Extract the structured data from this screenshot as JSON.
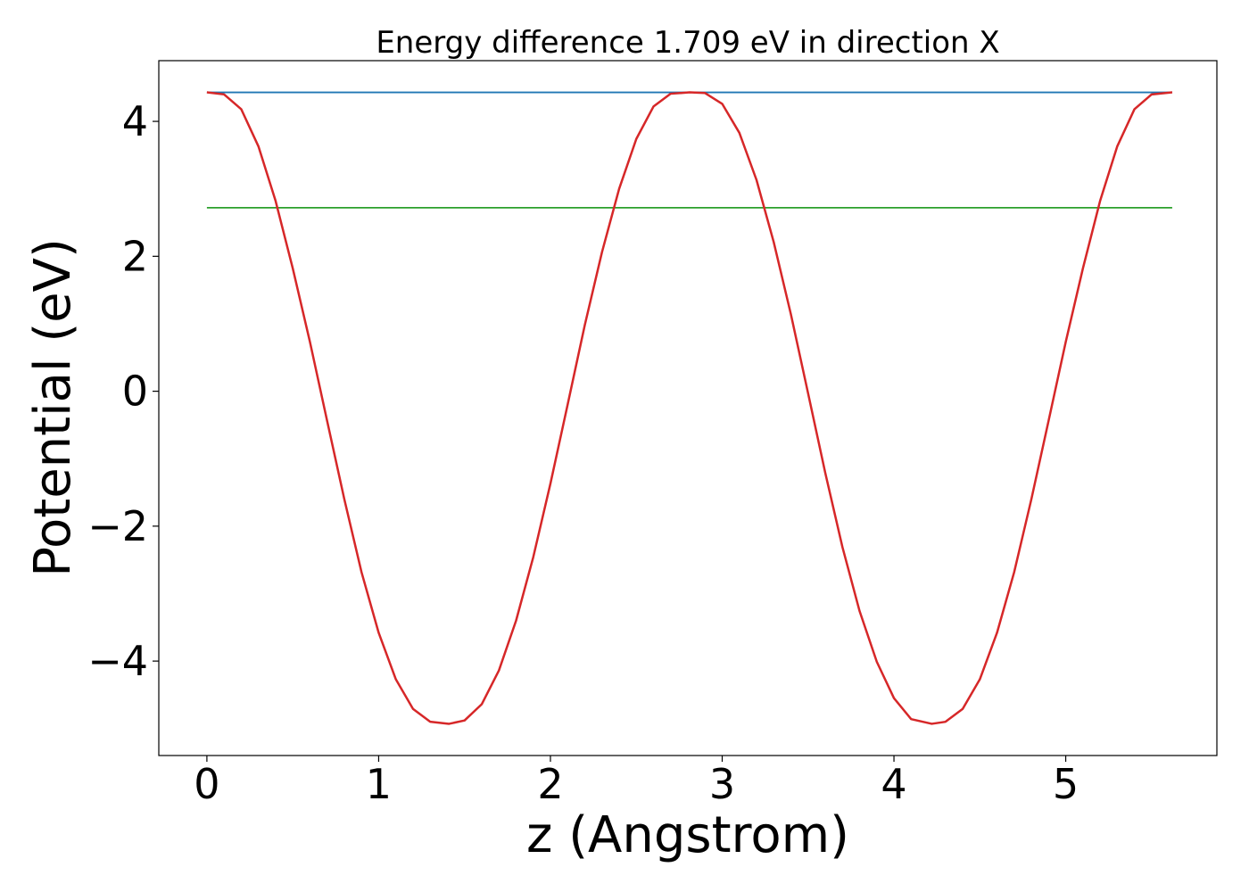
{
  "chart_data": {
    "type": "line",
    "title": "Energy difference 1.709 eV in direction X",
    "xlabel": "z (Angstrom)",
    "ylabel": "Potential (eV)",
    "xlim": [
      -0.28,
      5.88
    ],
    "ylim": [
      -5.4,
      4.9
    ],
    "xticks": [
      0,
      1,
      2,
      3,
      4,
      5
    ],
    "xtick_labels": [
      "0",
      "1",
      "2",
      "3",
      "4",
      "5"
    ],
    "yticks": [
      -4,
      -2,
      0,
      2,
      4
    ],
    "ytick_labels": [
      "−4",
      "−2",
      "0",
      "2",
      "4"
    ],
    "grid": false,
    "series": [
      {
        "color": "#1f77b4",
        "x": [
          0,
          5.62
        ],
        "y": [
          4.43,
          4.43
        ]
      },
      {
        "color": "#2ca02c",
        "x": [
          0,
          5.62
        ],
        "y": [
          2.72,
          2.72
        ]
      },
      {
        "color": "#d62728",
        "x": [
          0,
          0.1,
          0.2,
          0.3,
          0.4,
          0.5,
          0.6,
          0.7,
          0.8,
          0.9,
          1.0,
          1.1,
          1.2,
          1.3,
          1.41,
          1.5,
          1.6,
          1.7,
          1.8,
          1.9,
          2.0,
          2.1,
          2.2,
          2.3,
          2.4,
          2.5,
          2.6,
          2.7,
          2.81,
          2.9,
          3.0,
          3.1,
          3.2,
          3.3,
          3.4,
          3.5,
          3.6,
          3.7,
          3.8,
          3.9,
          4.0,
          4.1,
          4.22,
          4.3,
          4.4,
          4.5,
          4.6,
          4.7,
          4.8,
          4.9,
          5.0,
          5.1,
          5.2,
          5.3,
          5.4,
          5.5,
          5.62
        ],
        "y": [
          4.43,
          4.4,
          4.18,
          3.63,
          2.82,
          1.82,
          0.73,
          -0.44,
          -1.6,
          -2.68,
          -3.58,
          -4.27,
          -4.71,
          -4.9,
          -4.93,
          -4.88,
          -4.64,
          -4.14,
          -3.4,
          -2.46,
          -1.37,
          -0.2,
          0.98,
          2.06,
          3.0,
          3.74,
          4.22,
          4.41,
          4.43,
          4.42,
          4.26,
          3.83,
          3.13,
          2.21,
          1.14,
          -0.03,
          -1.21,
          -2.31,
          -3.26,
          -4.01,
          -4.55,
          -4.86,
          -4.93,
          -4.9,
          -4.71,
          -4.27,
          -3.58,
          -2.68,
          -1.6,
          -0.44,
          0.73,
          1.82,
          2.82,
          3.63,
          4.18,
          4.4,
          4.43
        ]
      }
    ]
  }
}
